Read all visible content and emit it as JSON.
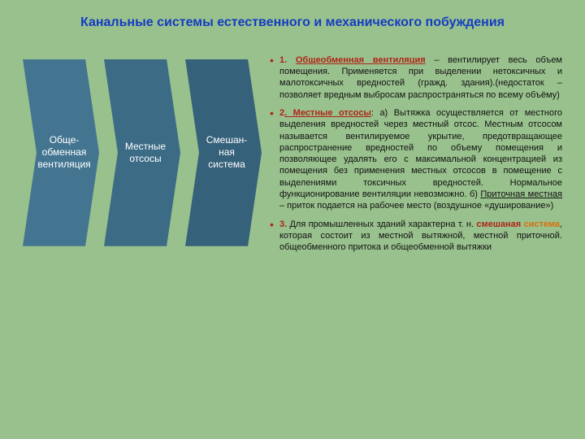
{
  "title": "Канальные системы естественного и механического побуждения",
  "shapes": {
    "type": "chevron-sequence",
    "item_width": 94,
    "item_height": 230,
    "gap": 6,
    "text_color": "#ffffff",
    "font_size": 12,
    "items": [
      {
        "label": "Обще-обменная вентиляция",
        "fill": "#437591"
      },
      {
        "label": "Местные отсосы",
        "fill": "#3c6b85"
      },
      {
        "label": "Смешан-ная система",
        "fill": "#36617a"
      }
    ]
  },
  "bullets": {
    "marker_color": "#b02418",
    "accent_color": "#b02418",
    "orange_color": "#d96f0f",
    "font_size": 11,
    "items": [
      {
        "num": "1. ",
        "lead_underlined": "Общеобменная вентиляция",
        "lead_style": "red-underline-bold",
        "rest": " – вентилирует весь объем помещения. Применяется при выделении нетоксичных и малотоксичных вредностей (гражд. здания).(недостаток – позволяет вредным выбросам распространяться по всему объёму)"
      },
      {
        "num": "2",
        "lead_underlined": ". Местные отсосы",
        "lead_style": "red-underline-bold",
        "colon": ": ",
        "part_a": "а) Вытяжка осуществляется от местного выделения вредностей через местный отсос. Местным отсосом называется вентилируемое укрытие, предотвращающее распространение вредностей по объему помещения и позволяющее удалять его с максимальной концентрацией из помещения без применения местных отсосов в помещение с выделениями токсичных вредностей. Нормальное функционирование вентиляции невозможно. б) ",
        "part_b_underlined": "Приточная местная",
        "part_c": " – приток подается на рабочее место (воздушное «душирование»)"
      },
      {
        "num": "3. ",
        "pre": "Для промышленных зданий характерна т. н. ",
        "mix_word1": "смешаная",
        "mix_word2": "система",
        "post": ", которая состоит из местной вытяжной, местной приточной. общеобменного притока и общеобменной вытяжки"
      }
    ]
  },
  "background_color": "#99c18d"
}
